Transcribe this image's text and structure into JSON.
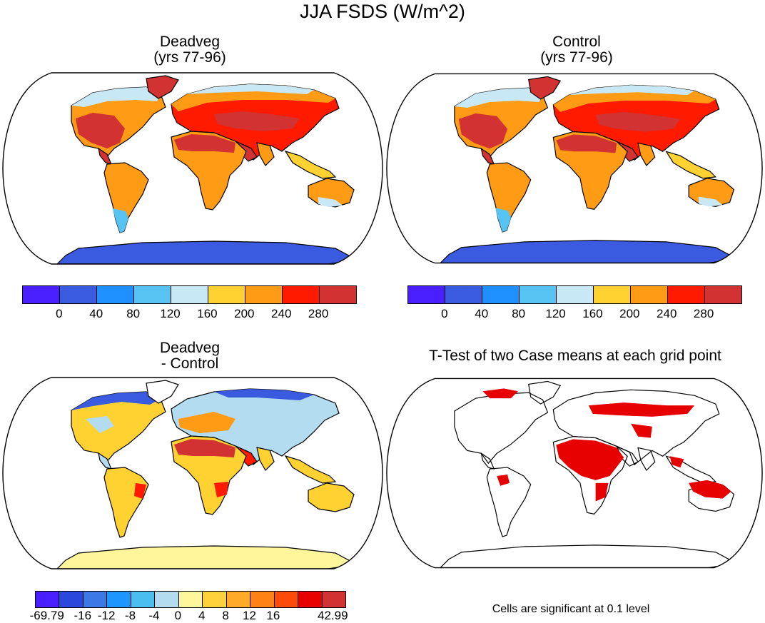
{
  "title": "JJA FSDS (W/m^2)",
  "panels": [
    {
      "id": "deadveg",
      "title_line1": "Deadveg",
      "title_line2": "(yrs 77-96)"
    },
    {
      "id": "control",
      "title_line1": "Control",
      "title_line2": "(yrs 77-96)"
    },
    {
      "id": "difference",
      "title_line1": "Deadveg",
      "title_line2": "- Control"
    },
    {
      "id": "ttest",
      "title_line1": "T-Test of two Case means at each grid point",
      "title_line2": ""
    }
  ],
  "colorbar_top": {
    "colors": [
      "#4a1fff",
      "#3a5ae0",
      "#1e90ff",
      "#56c3f2",
      "#c8e8f5",
      "#ffd232",
      "#ff9b14",
      "#ff1a00",
      "#d23232"
    ],
    "labels": [
      "0",
      "40",
      "80",
      "120",
      "160",
      "200",
      "240",
      "280"
    ]
  },
  "colorbar_diff": {
    "colors": [
      "#4a1fff",
      "#2b48dc",
      "#3c78e6",
      "#1e96ff",
      "#4bbef0",
      "#b4dcf0",
      "#fff59b",
      "#ffd23c",
      "#ffaa28",
      "#ff8214",
      "#ff4b0a",
      "#e60000",
      "#d23232"
    ],
    "labels": [
      "-69.79",
      "-16",
      "-12",
      "-8",
      "-4",
      "0",
      "4",
      "8",
      "12",
      "16",
      "42.99"
    ]
  },
  "footnote": "Cells are significant at 0.1 level",
  "colors": {
    "land_hot": "#d23232",
    "land_red": "#ff1a00",
    "land_orange": "#ff9b14",
    "land_yellow": "#ffd232",
    "land_lightblue": "#c8e8f5",
    "land_blue": "#56c3f2",
    "antarctica": "#3a5ae0",
    "sig_red": "#e60000",
    "diff_yellow": "#fff59b",
    "diff_lightblue": "#b4dcf0",
    "diff_blue": "#3a5ae0"
  }
}
